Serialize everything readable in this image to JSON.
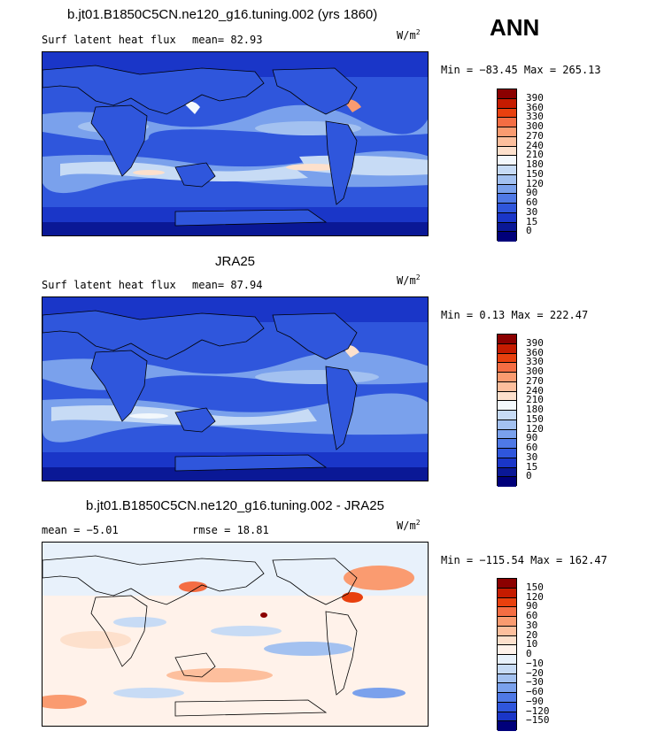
{
  "season": "ANN",
  "units_base": "W/m",
  "units_exp": "2",
  "panels": [
    {
      "title": "b.jt01.B1850C5CN.ne120_g16.tuning.002 (yrs 1860)",
      "subtitle": "Surf latent heat flux",
      "stat1": "mean=  82.93",
      "stat2": "",
      "minmax": "Min = −83.45 Max = 265.13"
    },
    {
      "title": "JRA25",
      "subtitle": "Surf latent heat flux",
      "stat1": "mean=  87.94",
      "stat2": "",
      "minmax": "Min =   0.13 Max = 222.47"
    },
    {
      "title": "b.jt01.B1850C5CN.ne120_g16.tuning.002 - JRA25",
      "subtitle": "mean =   −5.01",
      "stat1": "rmse =  18.81",
      "stat2": "",
      "minmax": "Min = −115.54 Max = 162.47"
    }
  ],
  "colorbar_abs": {
    "levels": [
      "390",
      "360",
      "330",
      "300",
      "270",
      "240",
      "210",
      "180",
      "150",
      "120",
      "90",
      "60",
      "30",
      "15",
      "0"
    ],
    "colors": [
      "#8b0000",
      "#c51b00",
      "#e8400e",
      "#f46d43",
      "#fa9b70",
      "#fdbf9d",
      "#fde0cc",
      "#f3f8fc",
      "#c7dbf5",
      "#a3c1f0",
      "#7aa1ec",
      "#4f79e6",
      "#2f56dc",
      "#1a36c8",
      "#0a1896",
      "#00007a"
    ]
  },
  "colorbar_diff": {
    "levels": [
      "150",
      "120",
      "90",
      "60",
      "30",
      "20",
      "10",
      "0",
      "−10",
      "−20",
      "−30",
      "−60",
      "−90",
      "−120",
      "−150"
    ],
    "colors": [
      "#8b0000",
      "#c51b00",
      "#e8400e",
      "#f46d43",
      "#fa9b70",
      "#fdbf9d",
      "#fde0cc",
      "#fff2ea",
      "#e8f1fb",
      "#c7dbf5",
      "#a3c1f0",
      "#7aa1ec",
      "#4f79e6",
      "#2f56dc",
      "#1a36c8",
      "#00007a"
    ]
  }
}
